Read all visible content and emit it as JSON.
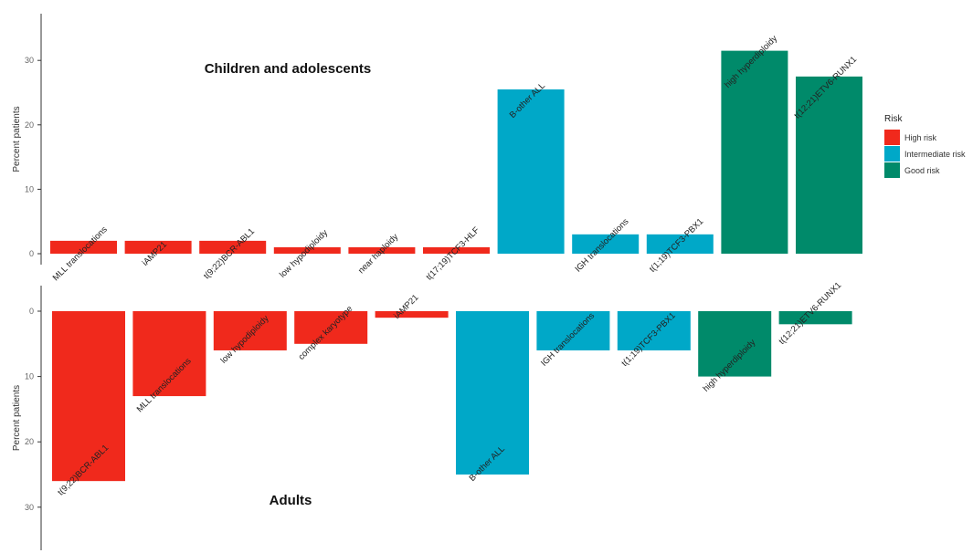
{
  "chart_data": [
    {
      "type": "bar",
      "panel": "top",
      "title": "Children and adolescents",
      "ylabel": "Percent patients",
      "yticks": [
        0,
        10,
        20,
        30
      ],
      "ylim": [
        0,
        36
      ],
      "categories": [
        "MLL translocations",
        "iAMP21",
        "t(9;22)BCR-ABL1",
        "low hypodiploidy",
        "near haploidy",
        "t(17;19)TCF3-HLF",
        "B-other ALL",
        "IGH translocations",
        "t(1;19)TCF3-PBX1",
        "high hyperdiploidy",
        "t(12;21)ETV6-RUNX1"
      ],
      "values": [
        2,
        2,
        2,
        1,
        1,
        1,
        25.5,
        3,
        3,
        31.5,
        27.5
      ],
      "risk": [
        "High risk",
        "High risk",
        "High risk",
        "High risk",
        "High risk",
        "High risk",
        "Intermediate risk",
        "Intermediate risk",
        "Intermediate risk",
        "Good risk",
        "Good risk"
      ]
    },
    {
      "type": "bar",
      "panel": "bottom",
      "title": "Adults",
      "ylabel": "Percent patients",
      "yticks": [
        0,
        10,
        20,
        30
      ],
      "ylim": [
        0,
        36
      ],
      "reversed": true,
      "categories": [
        "t(9;22)BCR-ABL1",
        "MLL translocations",
        "low hypodiploidy",
        "complex karyotype",
        "iAMP21",
        "B-other ALL",
        "IGH translocations",
        "t(1;19)TCF3-PBX1",
        "high hyperdiploidy",
        "t(12;21)ETV6-RUNX1"
      ],
      "values": [
        26,
        13,
        6,
        5,
        1,
        25,
        6,
        6,
        10,
        2
      ],
      "risk": [
        "High risk",
        "High risk",
        "High risk",
        "High risk",
        "High risk",
        "Intermediate risk",
        "Intermediate risk",
        "Intermediate risk",
        "Good risk",
        "Good risk"
      ]
    }
  ],
  "legend": {
    "title": "Risk",
    "placement": "right",
    "items": [
      {
        "label": "High risk",
        "color": "#f0291c"
      },
      {
        "label": "Intermediate risk",
        "color": "#00a8c8"
      },
      {
        "label": "Good risk",
        "color": "#008a6a"
      }
    ]
  }
}
